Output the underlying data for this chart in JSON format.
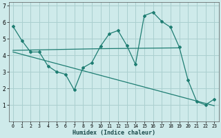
{
  "xlabel": "Humidex (Indice chaleur)",
  "background_color": "#ceeaea",
  "grid_color": "#aacfcf",
  "line_color": "#1e7d72",
  "xlim": [
    -0.5,
    23.5
  ],
  "ylim": [
    0,
    7.2
  ],
  "yticks": [
    1,
    2,
    3,
    4,
    5,
    6,
    7
  ],
  "xticks": [
    0,
    1,
    2,
    3,
    4,
    5,
    6,
    7,
    8,
    9,
    10,
    11,
    12,
    13,
    14,
    15,
    16,
    17,
    18,
    19,
    20,
    21,
    22,
    23
  ],
  "line1_x": [
    0,
    1,
    2,
    3,
    4,
    5,
    6,
    7,
    8,
    9,
    10,
    11,
    12,
    13,
    14,
    15,
    16,
    17,
    18,
    19,
    20,
    21,
    22,
    23
  ],
  "line1_y": [
    5.75,
    4.9,
    4.2,
    4.2,
    3.35,
    3.0,
    2.85,
    1.9,
    3.25,
    3.55,
    4.55,
    5.3,
    5.5,
    4.6,
    3.45,
    6.4,
    6.6,
    6.05,
    5.7,
    4.5,
    2.5,
    1.2,
    1.0,
    1.35
  ],
  "line2_x": [
    0,
    10,
    19
  ],
  "line2_y": [
    4.3,
    4.4,
    4.45
  ],
  "line3_x": [
    0,
    23
  ],
  "line3_y": [
    4.2,
    0.95
  ]
}
